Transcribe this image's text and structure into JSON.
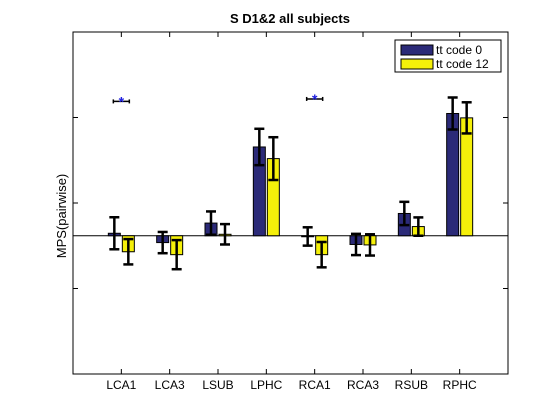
{
  "chart_data": {
    "type": "bar",
    "title": "S D1&2 all subjects",
    "xlabel": "",
    "ylabel": "MPS(pairwise)",
    "categories": [
      "LCA1",
      "LCA3",
      "LSUB",
      "LPHC",
      "RCA1",
      "RCA3",
      "RSUB",
      "RPHC"
    ],
    "ylim": [
      -0.95,
      1.4
    ],
    "yticks_visible": false,
    "grid": false,
    "legend_position": "top-right",
    "zero_line": true,
    "series": [
      {
        "name": "tt code 0",
        "color": "#2b2a78",
        "values": [
          0.017,
          -0.047,
          0.087,
          0.61,
          -0.005,
          -0.06,
          0.153,
          0.84
        ],
        "errors": [
          0.11,
          0.073,
          0.08,
          0.125,
          0.063,
          0.073,
          0.08,
          0.11
        ]
      },
      {
        "name": "tt code 12",
        "color": "#f5f00a",
        "values": [
          -0.11,
          -0.13,
          0.01,
          0.53,
          -0.13,
          -0.063,
          0.063,
          0.81
        ],
        "errors": [
          0.087,
          0.1,
          0.07,
          0.147,
          0.087,
          0.073,
          0.063,
          0.107
        ]
      }
    ],
    "significance_markers": [
      {
        "category": "LCA1",
        "symbol": "*",
        "y": 0.923,
        "color": "#1f1fe0"
      },
      {
        "category": "RCA1",
        "symbol": "*",
        "y": 0.94,
        "color": "#1f1fe0"
      }
    ]
  }
}
